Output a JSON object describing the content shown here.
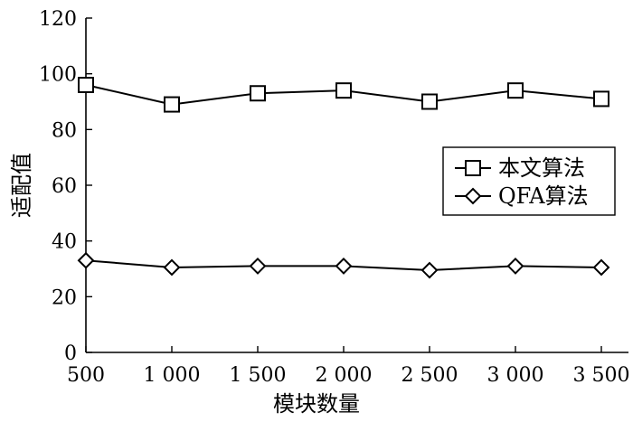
{
  "chart_data": {
    "type": "line",
    "xlabel": "模块数量",
    "ylabel": "适配值",
    "x": [
      500,
      1000,
      1500,
      2000,
      2500,
      3000,
      3500
    ],
    "x_tick_labels": [
      "500",
      "1 000",
      "1 500",
      "2 000",
      "2 500",
      "3 000",
      "3 500"
    ],
    "xlim": [
      500,
      3500
    ],
    "ylim": [
      0,
      120
    ],
    "y_ticks": [
      0,
      20,
      40,
      60,
      80,
      100,
      120
    ],
    "y_tick_labels": [
      "0",
      "20",
      "40",
      "60",
      "80",
      "100",
      "120"
    ],
    "grid": false,
    "legend_position": "center-right",
    "series": [
      {
        "name": "本文算法",
        "marker": "square",
        "values": [
          96,
          89,
          93,
          94,
          90,
          94,
          91
        ]
      },
      {
        "name": "QFA算法",
        "marker": "diamond",
        "values": [
          33,
          30.5,
          31,
          31,
          29.5,
          31,
          30.5
        ]
      }
    ]
  }
}
